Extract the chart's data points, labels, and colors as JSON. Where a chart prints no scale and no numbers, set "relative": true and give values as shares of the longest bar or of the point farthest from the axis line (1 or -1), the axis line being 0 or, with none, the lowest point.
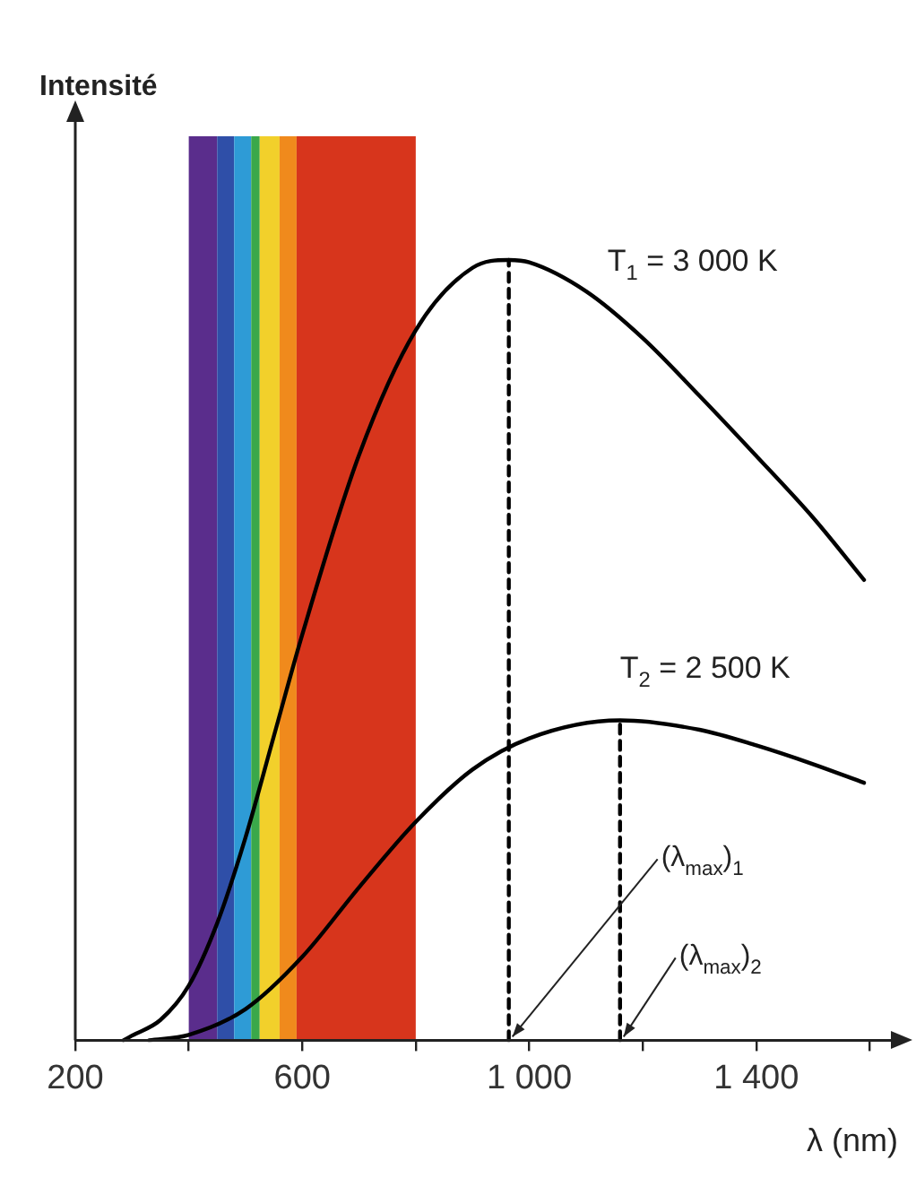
{
  "chart_data": {
    "type": "line",
    "relative": true,
    "xlabel": "λ (nm)",
    "xlim": [
      200,
      1650
    ],
    "xticks": [
      200,
      {
        "value": 400,
        "label": null
      },
      600,
      {
        "value": 800,
        "label": null
      },
      {
        "value": 1000,
        "label": "1 000"
      },
      {
        "value": 1200,
        "label": null
      },
      {
        "value": 1400,
        "label": "1 400"
      },
      {
        "value": 1600,
        "label": null
      }
    ],
    "grid": false,
    "legend": false,
    "marker": "none",
    "series": [
      {
        "name": "T$_{1}$ = 3 000 K",
        "color": "#000000",
        "line_style": "solid",
        "x": [
          285,
          300,
          350,
          400,
          450,
          500,
          550,
          600,
          700,
          800,
          900,
          964,
          1000,
          1100,
          1200,
          1300,
          1400,
          1500,
          1590
        ],
        "values": [
          0,
          0.006,
          0.026,
          0.07,
          0.15,
          0.26,
          0.39,
          0.52,
          0.75,
          0.91,
          0.99,
          1,
          0.997,
          0.96,
          0.9,
          0.826,
          0.749,
          0.67,
          0.59
        ]
      },
      {
        "name": "T$_{2}$ = 2 500 K",
        "color": "#000000",
        "line_style": "solid",
        "x": [
          330,
          400,
          500,
          600,
          700,
          800,
          900,
          1000,
          1160,
          1300,
          1400,
          1500,
          1590
        ],
        "values": [
          0,
          0.007,
          0.04,
          0.107,
          0.196,
          0.28,
          0.347,
          0.387,
          0.41,
          0.398,
          0.378,
          0.354,
          0.33
        ]
      },
      {
        "color": "#000000",
        "line_style": "dashed",
        "x": [
          964,
          964
        ],
        "values": [
          0,
          1
        ]
      },
      {
        "color": "#000000",
        "line_style": "dashed",
        "x": [
          1160,
          1160
        ],
        "values": [
          0,
          0.41
        ]
      }
    ],
    "bands": [
      {
        "axis": "x",
        "from": 400,
        "to": 450,
        "color": "#5a2d8c"
      },
      {
        "axis": "x",
        "from": 450,
        "to": 480,
        "color": "#2f4fa8"
      },
      {
        "axis": "x",
        "from": 480,
        "to": 510,
        "color": "#2e9bd6"
      },
      {
        "axis": "x",
        "from": 510,
        "to": 525,
        "color": "#3aa84a"
      },
      {
        "axis": "x",
        "from": 525,
        "to": 560,
        "color": "#f2d02b"
      },
      {
        "axis": "x",
        "from": 560,
        "to": 590,
        "color": "#f08a1c"
      },
      {
        "axis": "x",
        "from": 590,
        "to": 800,
        "color": "#d7351c"
      }
    ],
    "annotations": [
      "Intensité",
      {
        "text": "(λ$_{max}$)$_{1}$",
        "x": 964,
        "y": 0
      },
      {
        "text": "(λ$_{max}$)$_{2}$",
        "x": 1160,
        "y": 0
      }
    ]
  }
}
